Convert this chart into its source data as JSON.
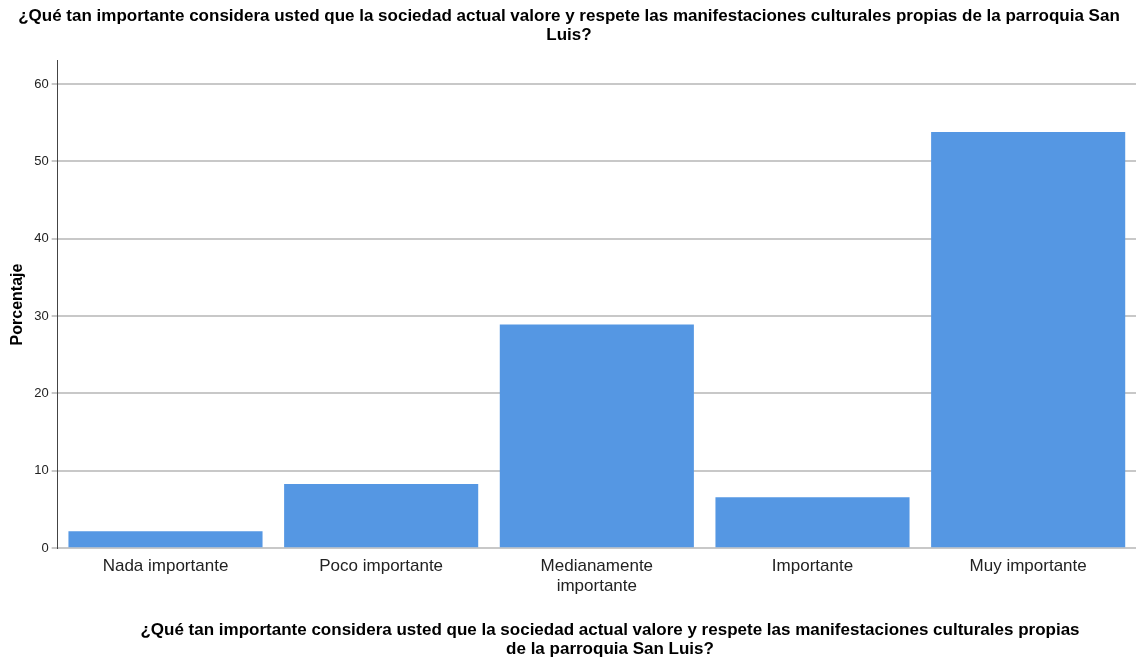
{
  "chart_data": {
    "type": "bar",
    "title": "¿Qué tan importante considera usted que la sociedad actual valore y respete las manifestaciones culturales propias de la parroquia San Luis?",
    "xlabel": "¿Qué tan importante considera usted que la sociedad actual valore y respete las manifestaciones culturales propias de la parroquia San Luis?",
    "ylabel": "Porcentaje",
    "categories": [
      "Nada importante",
      "Poco importante",
      "Medianamente importante",
      "Importante",
      "Muy importante"
    ],
    "values": [
      2.2,
      8.3,
      28.9,
      6.6,
      53.8
    ],
    "color": "#5597e3",
    "ylim": [
      0,
      63
    ],
    "yticks": [
      0,
      10,
      20,
      30,
      40,
      50,
      60
    ],
    "grid": "y"
  }
}
